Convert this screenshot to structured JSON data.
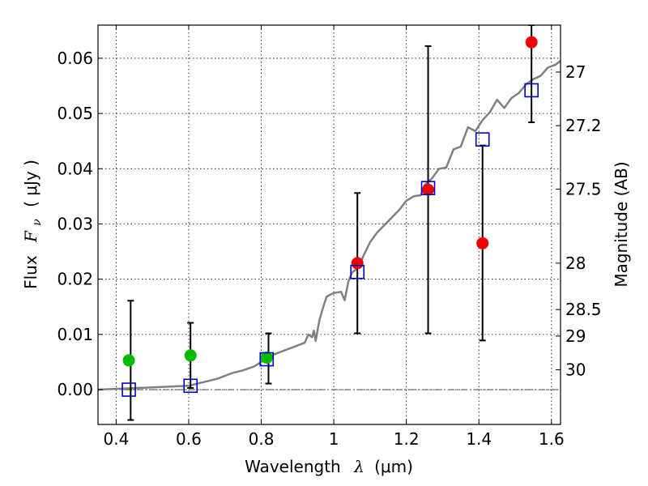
{
  "chart_data": {
    "type": "scatter",
    "xlabel": {
      "prefix": "Wavelength",
      "symbol": "λ",
      "unit": "(μm)"
    },
    "ylabel": {
      "prefix": "Flux",
      "symbol": "F",
      "subscript": "ν",
      "unit": "( μJy )"
    },
    "y2label": "Magnitude (AB)",
    "xlim": [
      0.35,
      1.625
    ],
    "ylim": [
      -0.0063,
      0.066
    ],
    "grid": true,
    "x_ticks": [
      {
        "value": 0.4,
        "label": "0.4"
      },
      {
        "value": 0.6,
        "label": "0.6"
      },
      {
        "value": 0.8,
        "label": "0.8"
      },
      {
        "value": 1.0,
        "label": "1"
      },
      {
        "value": 1.2,
        "label": "1.2"
      },
      {
        "value": 1.4,
        "label": "1.4"
      },
      {
        "value": 1.6,
        "label": "1.6"
      }
    ],
    "y_ticks": [
      {
        "value": 0.0,
        "label": "0.00"
      },
      {
        "value": 0.01,
        "label": "0.01"
      },
      {
        "value": 0.02,
        "label": "0.02"
      },
      {
        "value": 0.03,
        "label": "0.03"
      },
      {
        "value": 0.04,
        "label": "0.04"
      },
      {
        "value": 0.05,
        "label": "0.05"
      },
      {
        "value": 0.06,
        "label": "0.06"
      }
    ],
    "y2_ticks": [
      {
        "label": "27",
        "flux": 0.0575
      },
      {
        "label": "27.2",
        "flux": 0.0478
      },
      {
        "label": "27.5",
        "flux": 0.0363
      },
      {
        "label": "28",
        "flux": 0.0229
      },
      {
        "label": "28.5",
        "flux": 0.0145
      },
      {
        "label": "29",
        "flux": 0.0097
      },
      {
        "label": "30",
        "flux": 0.0036
      }
    ],
    "colors": {
      "model": "#808080",
      "green": "#00bb00",
      "red": "#ee0000",
      "box": "#0000cc",
      "errorbar": "#000000",
      "zero_line": "#333333"
    },
    "series": [
      {
        "name": "model spectrum",
        "kind": "line",
        "x": [
          0.35,
          0.5,
          0.6,
          0.63,
          0.65,
          0.68,
          0.7,
          0.72,
          0.75,
          0.78,
          0.8,
          0.82,
          0.84,
          0.86,
          0.88,
          0.9,
          0.92,
          0.93,
          0.94,
          0.945,
          0.95,
          0.96,
          0.97,
          0.98,
          0.99,
          1.0,
          1.02,
          1.03,
          1.04,
          1.05,
          1.07,
          1.08,
          1.1,
          1.12,
          1.15,
          1.18,
          1.2,
          1.22,
          1.24,
          1.25,
          1.27,
          1.29,
          1.31,
          1.33,
          1.35,
          1.37,
          1.39,
          1.41,
          1.43,
          1.45,
          1.47,
          1.49,
          1.51,
          1.53,
          1.55,
          1.57,
          1.59,
          1.61,
          1.625
        ],
        "y": [
          0.0,
          0.0004,
          0.0007,
          0.0012,
          0.0015,
          0.002,
          0.0025,
          0.003,
          0.0035,
          0.0042,
          0.005,
          0.006,
          0.0065,
          0.007,
          0.0075,
          0.008,
          0.0085,
          0.01,
          0.0095,
          0.0107,
          0.0088,
          0.0125,
          0.0148,
          0.0168,
          0.0172,
          0.0175,
          0.0177,
          0.0162,
          0.0195,
          0.0212,
          0.0222,
          0.024,
          0.0267,
          0.0285,
          0.0305,
          0.0325,
          0.0342,
          0.035,
          0.0352,
          0.037,
          0.0382,
          0.04,
          0.0402,
          0.0435,
          0.044,
          0.0475,
          0.0468,
          0.0488,
          0.0502,
          0.0525,
          0.051,
          0.0528,
          0.0537,
          0.0553,
          0.0562,
          0.0568,
          0.0583,
          0.0588,
          0.0595
        ]
      },
      {
        "name": "measured flux (detected)",
        "kind": "points",
        "color": "green",
        "points": [
          {
            "x": 0.435,
            "y": 0.0053
          },
          {
            "x": 0.605,
            "y": 0.0062
          },
          {
            "x": 0.815,
            "y": 0.0058
          }
        ]
      },
      {
        "name": "measured flux (red)",
        "kind": "points",
        "color": "red",
        "points": [
          {
            "x": 1.065,
            "y": 0.0229
          },
          {
            "x": 1.26,
            "y": 0.0362
          },
          {
            "x": 1.41,
            "y": 0.0265
          },
          {
            "x": 1.545,
            "y": 0.0629
          }
        ]
      },
      {
        "name": "model photometry",
        "kind": "boxes",
        "color": "box",
        "points": [
          {
            "x": 0.435,
            "y": 0.0
          },
          {
            "x": 0.605,
            "y": 0.0007
          },
          {
            "x": 0.815,
            "y": 0.0055
          },
          {
            "x": 1.065,
            "y": 0.0213
          },
          {
            "x": 1.26,
            "y": 0.0365
          },
          {
            "x": 1.41,
            "y": 0.0453
          },
          {
            "x": 1.545,
            "y": 0.0542
          }
        ]
      },
      {
        "name": "error bars",
        "kind": "errorbars",
        "bars": [
          {
            "x": 0.44,
            "low": -0.0055,
            "high": 0.0161
          },
          {
            "x": 0.605,
            "low": 0.0003,
            "high": 0.0121
          },
          {
            "x": 0.82,
            "low": 0.0011,
            "high": 0.0102
          },
          {
            "x": 1.065,
            "low": 0.0102,
            "high": 0.0356
          },
          {
            "x": 1.26,
            "low": 0.0102,
            "high": 0.0622
          },
          {
            "x": 1.41,
            "low": 0.0089,
            "high": 0.0442
          },
          {
            "x": 1.545,
            "low": 0.0484,
            "high": 0.066
          }
        ]
      }
    ]
  }
}
